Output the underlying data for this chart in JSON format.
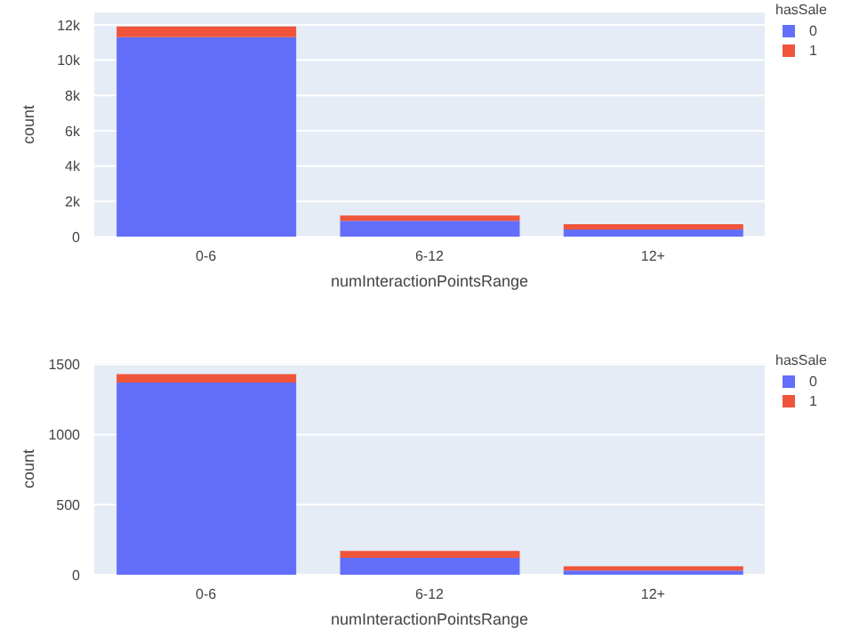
{
  "chart_data": [
    {
      "type": "bar",
      "stacked": true,
      "categories": [
        "0-6",
        "6-12",
        "12+"
      ],
      "xlabel": "numInteractionPointsRange",
      "ylabel": "count",
      "legend_title": "hasSale",
      "legend": "top right",
      "grid": "y",
      "ylim": [
        0,
        12700
      ],
      "yticks": [
        0,
        {
          "value": 2000,
          "label": "2k"
        },
        {
          "value": 4000,
          "label": "4k"
        },
        {
          "value": 6000,
          "label": "6k"
        },
        {
          "value": 8000,
          "label": "8k"
        },
        {
          "value": 10000,
          "label": "10k"
        },
        {
          "value": 12000,
          "label": "12k"
        }
      ],
      "series": [
        {
          "name": "0",
          "color": "#636efa",
          "values": [
            11300,
            900,
            400
          ]
        },
        {
          "name": "1",
          "color": "#ef553b",
          "values": [
            600,
            300,
            300
          ]
        }
      ]
    },
    {
      "type": "bar",
      "stacked": true,
      "categories": [
        "0-6",
        "6-12",
        "12+"
      ],
      "xlabel": "numInteractionPointsRange",
      "ylabel": "count",
      "legend_title": "hasSale",
      "legend": "top right",
      "grid": "y",
      "ylim": [
        0,
        1510
      ],
      "yticks": [
        0,
        500,
        1000,
        1500
      ],
      "series": [
        {
          "name": "0",
          "color": "#636efa",
          "values": [
            1370,
            120,
            30
          ]
        },
        {
          "name": "1",
          "color": "#ef553b",
          "values": [
            60,
            50,
            30
          ]
        }
      ]
    }
  ]
}
